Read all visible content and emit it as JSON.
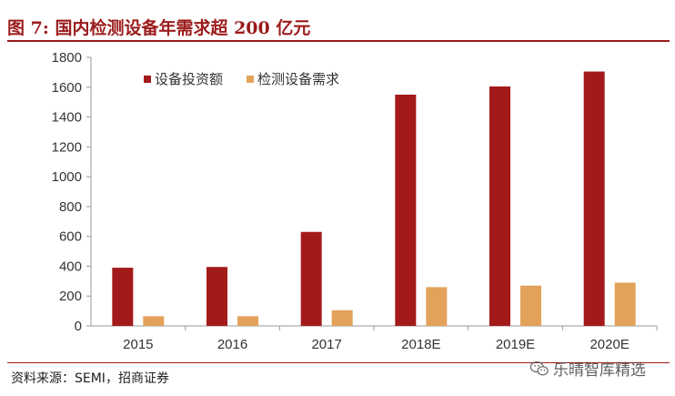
{
  "title": "图 7:  国内检测设备年需求超 200 亿元",
  "source": "资料来源：SEMI，招商证券",
  "watermark": "乐晴智库精选",
  "colors": {
    "series1": "#a31a1a",
    "series2": "#e3a25a",
    "accent": "#9c1c1c"
  },
  "chart_data": {
    "type": "bar",
    "categories": [
      "2015",
      "2016",
      "2017",
      "2018E",
      "2019E",
      "2020E"
    ],
    "series": [
      {
        "name": "设备投资额",
        "values": [
          390,
          395,
          630,
          1550,
          1605,
          1705
        ]
      },
      {
        "name": "检测设备需求",
        "values": [
          65,
          65,
          105,
          260,
          270,
          290
        ]
      }
    ],
    "ylim": [
      0,
      1800
    ],
    "yticks": [
      "0",
      "200",
      "400",
      "600",
      "800",
      "1000",
      "1200",
      "1400",
      "1600",
      "1800"
    ],
    "grid": false,
    "legend": "top-left"
  }
}
